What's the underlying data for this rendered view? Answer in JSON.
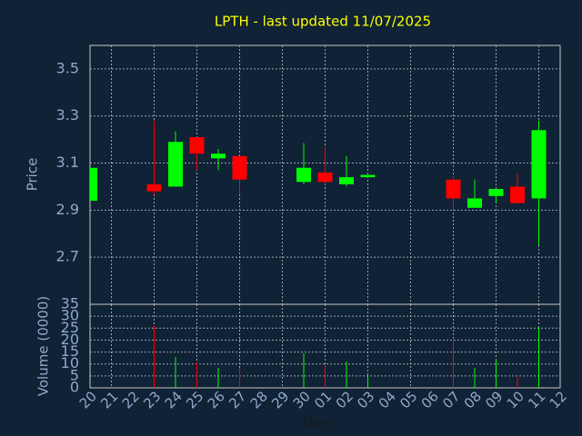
{
  "chart_data": {
    "type": "candlestick",
    "title": "LPTH - last updated 11/07/2025",
    "ylabel": "Price",
    "volume_label": "Volume (0000)",
    "xlabel": "Day",
    "categories": [
      "20",
      "21",
      "22",
      "23",
      "24",
      "25",
      "26",
      "27",
      "28",
      "29",
      "30",
      "01",
      "02",
      "03",
      "04",
      "05",
      "06",
      "07",
      "08",
      "09",
      "10",
      "11",
      "12"
    ],
    "open": [
      2.94,
      null,
      null,
      3.01,
      3.0,
      3.21,
      3.12,
      3.13,
      null,
      null,
      3.02,
      3.06,
      3.01,
      3.04,
      null,
      null,
      null,
      3.03,
      2.91,
      2.96,
      3.0,
      2.95,
      null
    ],
    "high": [
      3.08,
      null,
      null,
      3.28,
      3.235,
      3.21,
      3.16,
      3.13,
      null,
      null,
      3.185,
      3.17,
      3.13,
      3.05,
      null,
      null,
      null,
      3.045,
      3.03,
      2.99,
      3.055,
      3.28,
      null
    ],
    "low": [
      2.94,
      null,
      null,
      2.965,
      3.0,
      3.07,
      3.07,
      2.965,
      null,
      null,
      3.01,
      3.01,
      3.0,
      3.04,
      null,
      null,
      null,
      2.9,
      2.91,
      2.93,
      2.93,
      2.75,
      null
    ],
    "close": [
      3.08,
      null,
      null,
      2.98,
      3.19,
      3.14,
      3.14,
      3.03,
      null,
      null,
      3.08,
      3.02,
      3.04,
      3.05,
      null,
      null,
      null,
      2.95,
      2.95,
      2.99,
      2.93,
      3.24,
      null
    ],
    "volume": [
      null,
      null,
      null,
      26,
      13,
      10.7,
      8.4,
      8.4,
      null,
      null,
      14.5,
      9.5,
      11,
      5.3,
      null,
      null,
      null,
      20,
      8.4,
      12,
      4.6,
      25.6,
      null
    ],
    "ylim": [
      2.5,
      3.6
    ],
    "yticks": [
      2.7,
      2.9,
      3.1,
      3.3,
      3.5
    ],
    "volume_ylim": [
      0,
      35
    ],
    "volume_yticks": [
      0,
      5,
      10,
      15,
      20,
      25,
      30,
      35
    ],
    "up_color": "#00ff00",
    "down_color": "#ff0000",
    "grid": true
  }
}
